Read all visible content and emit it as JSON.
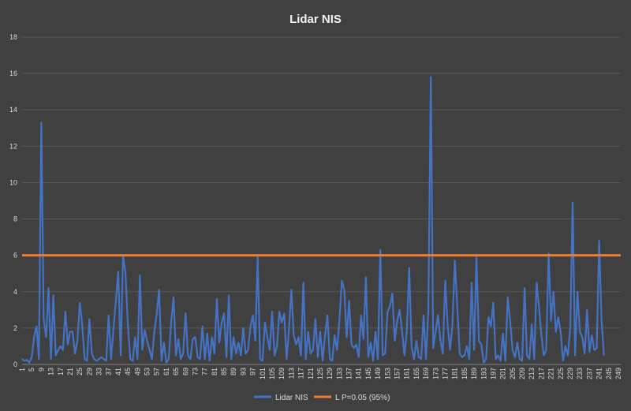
{
  "chart_data": {
    "type": "line",
    "title": "Lidar NIS",
    "xlabel": "",
    "ylabel": "",
    "ylim": [
      0,
      18
    ],
    "yticks": [
      0,
      2,
      4,
      6,
      8,
      10,
      12,
      14,
      16,
      18
    ],
    "xlim": [
      1,
      250
    ],
    "xticks": [
      1,
      5,
      9,
      13,
      17,
      21,
      25,
      29,
      33,
      37,
      41,
      45,
      49,
      53,
      57,
      61,
      65,
      69,
      73,
      77,
      81,
      85,
      89,
      93,
      97,
      101,
      105,
      109,
      113,
      117,
      121,
      125,
      129,
      133,
      137,
      141,
      145,
      149,
      153,
      157,
      161,
      165,
      169,
      173,
      177,
      181,
      185,
      189,
      193,
      197,
      201,
      205,
      209,
      213,
      217,
      221,
      225,
      229,
      233,
      237,
      241,
      245,
      249
    ],
    "grid": true,
    "legend_position": "bottom",
    "colors": {
      "background": "#404040",
      "grid": "#595959",
      "nis": "#4472c4",
      "threshold": "#ed7d31"
    },
    "series": [
      {
        "name": "Lidar NIS",
        "color": "#4472c4",
        "values": [
          0.3,
          0.2,
          0.25,
          0.1,
          0.4,
          1.5,
          2.1,
          0.3,
          13.3,
          2.5,
          1.5,
          4.2,
          0.3,
          3.8,
          0.5,
          0.8,
          1.0,
          0.8,
          2.9,
          1.1,
          1.8,
          1.8,
          0.6,
          1.3,
          3.4,
          2.2,
          0.3,
          0.2,
          2.5,
          0.6,
          0.3,
          0.2,
          0.3,
          0.4,
          0.3,
          0.2,
          2.7,
          0.3,
          1.9,
          3.5,
          5.1,
          0.5,
          6.0,
          5.0,
          2.2,
          0.3,
          0.2,
          1.5,
          0.3,
          4.9,
          0.8,
          1.9,
          1.3,
          0.8,
          0.3,
          1.8,
          2.8,
          4.1,
          0.2,
          1.2,
          0.1,
          0.3,
          2.3,
          3.7,
          0.5,
          1.4,
          0.3,
          0.6,
          2.8,
          0.5,
          0.3,
          1.4,
          1.5,
          0.4,
          0.3,
          2.1,
          0.3,
          1.7,
          0.2,
          1.5,
          0.6,
          3.6,
          1.2,
          2.3,
          2.8,
          0.4,
          3.8,
          0.3,
          1.5,
          0.6,
          1.2,
          0.5,
          2.0,
          0.6,
          0.8,
          2.1,
          2.7,
          1.3,
          5.9,
          0.3,
          0.2,
          2.3,
          1.5,
          0.8,
          2.9,
          0.5,
          1.0,
          2.9,
          2.3,
          2.8,
          0.3,
          1.9,
          4.1,
          1.6,
          1.1,
          1.5,
          0.5,
          4.5,
          0.3,
          1.8,
          0.6,
          0.8,
          2.5,
          0.4,
          1.8,
          0.2,
          1.6,
          2.7,
          0.3,
          0.2,
          1.6,
          0.8,
          2.5,
          4.6,
          4.1,
          1.5,
          3.5,
          1.1,
          0.9,
          1.1,
          0.4,
          2.7,
          1.4,
          4.8,
          0.4,
          1.2,
          0.2,
          1.8,
          0.3,
          6.3,
          0.5,
          0.6,
          2.9,
          3.2,
          3.9,
          1.3,
          2.4,
          3.0,
          1.9,
          0.5,
          1.8,
          5.3,
          1.0,
          0.3,
          1.3,
          0.4,
          0.3,
          2.7,
          0.3,
          3.0,
          15.8,
          0.9,
          1.8,
          2.7,
          1.3,
          0.6,
          4.6,
          2.2,
          0.8,
          2.2,
          5.7,
          3.2,
          0.6,
          0.4,
          0.5,
          1.0,
          0.3,
          4.5,
          0.8,
          5.9,
          1.3,
          1.1,
          0.1,
          0.3,
          2.6,
          2.1,
          3.4,
          0.3,
          0.5,
          0.2,
          1.7,
          0.2,
          3.7,
          2.4,
          0.8,
          0.4,
          1.2,
          0.3,
          0.2,
          4.2,
          0.5,
          0.3,
          2.2,
          0.3,
          4.5,
          3.1,
          1.6,
          0.5,
          0.8,
          6.1,
          2.4,
          4.0,
          1.8,
          2.6,
          1.8,
          0.2,
          1.0,
          0.5,
          2.0,
          8.9,
          0.5,
          4.0,
          1.8,
          1.5,
          0.6,
          3.0,
          0.7,
          1.6,
          0.8,
          0.9,
          6.8,
          2.5,
          0.5
        ]
      },
      {
        "name": "L P=0.05 (95%)",
        "color": "#ed7d31",
        "constant": 6.0
      }
    ]
  }
}
